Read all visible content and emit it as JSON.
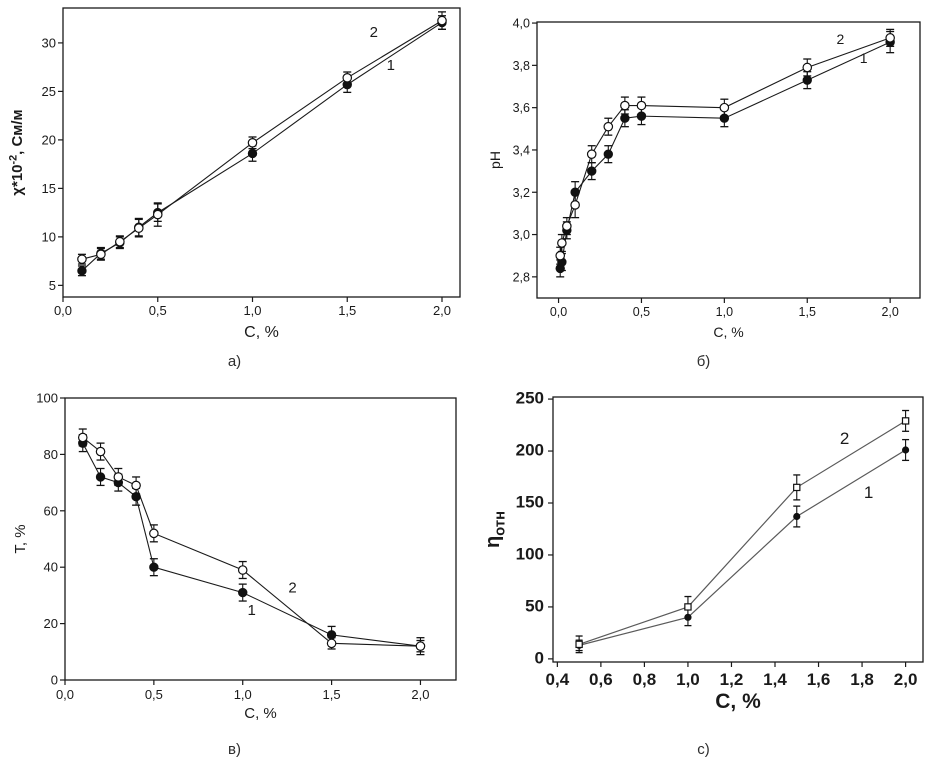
{
  "figure": {
    "background": "#ffffff",
    "captions": [
      "а)",
      "б)",
      "в)",
      "c)"
    ]
  },
  "colors": {
    "axis": "#1a1a1a",
    "marker": "#111111",
    "line_top_charts": "#1a1a1a",
    "line_chart_c": "#5a5a5a"
  },
  "chart_data": [
    {
      "id": "a",
      "type": "line",
      "caption": "а)",
      "xlabel": "C, %",
      "ylabel_text": "χ*10⁻², См/м",
      "ylabel_parts": [
        {
          "t": "χ*10"
        },
        {
          "t": "-2",
          "sup": true
        },
        {
          "t": ", См/м"
        }
      ],
      "xlim": [
        0,
        2.095
      ],
      "ylim": [
        3.8,
        33.6
      ],
      "xticks": {
        "values": [
          0,
          0.5,
          1.0,
          1.5,
          2.0
        ],
        "labels": [
          "0,0",
          "0,5",
          "1,0",
          "1,5",
          "2,0"
        ]
      },
      "yticks": {
        "values": [
          5,
          10,
          15,
          20,
          25,
          30
        ],
        "labels": [
          "5",
          "10",
          "15",
          "20",
          "25",
          "30"
        ]
      },
      "legend_position": "none",
      "grid": false,
      "series": [
        {
          "name": "1",
          "marker": "filled-circle",
          "x": [
            0.1,
            0.2,
            0.3,
            0.4,
            0.5,
            1.0,
            1.5,
            2.0
          ],
          "y": [
            6.5,
            8.3,
            9.4,
            11.0,
            12.5,
            18.6,
            25.7,
            32.1
          ],
          "err": [
            0.5,
            0.6,
            0.6,
            0.9,
            0.9,
            0.8,
            0.8,
            0.7
          ]
        },
        {
          "name": "2",
          "marker": "open-circle",
          "x": [
            0.1,
            0.2,
            0.3,
            0.4,
            0.5,
            1.0,
            1.5,
            2.0
          ],
          "y": [
            7.7,
            8.2,
            9.5,
            10.9,
            12.3,
            19.7,
            26.4,
            32.3
          ],
          "err": [
            0.5,
            0.6,
            0.6,
            0.9,
            1.2,
            0.6,
            0.6,
            0.9
          ]
        }
      ],
      "annotations": [
        {
          "text": "2",
          "x": 1.64,
          "y": 30.6
        },
        {
          "text": "1",
          "x": 1.73,
          "y": 27.2
        }
      ]
    },
    {
      "id": "b",
      "type": "line",
      "caption": "б)",
      "xlabel": "C, %",
      "ylabel_text": "pH",
      "ylabel_parts": [
        {
          "t": "pH"
        }
      ],
      "xlim": [
        -0.13,
        2.18
      ],
      "ylim": [
        2.7,
        4.005
      ],
      "xticks": {
        "values": [
          0,
          0.5,
          1.0,
          1.5,
          2.0
        ],
        "labels": [
          "0,0",
          "0,5",
          "1,0",
          "1,5",
          "2,0"
        ]
      },
      "yticks": {
        "values": [
          2.8,
          3.0,
          3.2,
          3.4,
          3.6,
          3.8,
          4.0
        ],
        "labels": [
          "2,8",
          "3,0",
          "3,2",
          "3,4",
          "3,6",
          "3,8",
          "4,0"
        ]
      },
      "legend_position": "none",
      "grid": false,
      "series": [
        {
          "name": "1",
          "marker": "filled-circle",
          "x": [
            0.01,
            0.02,
            0.05,
            0.1,
            0.2,
            0.3,
            0.4,
            0.5,
            1.0,
            1.5,
            2.0
          ],
          "y": [
            2.84,
            2.87,
            3.02,
            3.2,
            3.3,
            3.38,
            3.55,
            3.56,
            3.55,
            3.73,
            3.91
          ],
          "err": [
            0.04,
            0.04,
            0.04,
            0.05,
            0.04,
            0.04,
            0.04,
            0.04,
            0.04,
            0.04,
            0.05
          ]
        },
        {
          "name": "2",
          "marker": "open-circle",
          "x": [
            0.01,
            0.02,
            0.05,
            0.1,
            0.2,
            0.3,
            0.4,
            0.5,
            1.0,
            1.5,
            2.0
          ],
          "y": [
            2.9,
            2.96,
            3.04,
            3.14,
            3.38,
            3.51,
            3.61,
            3.61,
            3.6,
            3.79,
            3.93
          ],
          "err": [
            0.04,
            0.04,
            0.04,
            0.06,
            0.04,
            0.04,
            0.04,
            0.04,
            0.04,
            0.04,
            0.04
          ]
        }
      ],
      "annotations": [
        {
          "text": "2",
          "x": 1.7,
          "y": 3.9
        },
        {
          "text": "1",
          "x": 1.84,
          "y": 3.81
        }
      ]
    },
    {
      "id": "v",
      "type": "line",
      "caption": "в)",
      "xlabel": "C, %",
      "ylabel_text": "T, %",
      "ylabel_parts": [
        {
          "t": "T, %"
        }
      ],
      "xlim": [
        0,
        2.2
      ],
      "ylim": [
        0,
        100
      ],
      "xticks": {
        "values": [
          0,
          0.5,
          1.0,
          1.5,
          2.0
        ],
        "labels": [
          "0,0",
          "0,5",
          "1,0",
          "1,5",
          "2,0"
        ]
      },
      "yticks": {
        "values": [
          0,
          20,
          40,
          60,
          80,
          100
        ],
        "labels": [
          "0",
          "20",
          "40",
          "60",
          "80",
          "100"
        ]
      },
      "legend_position": "none",
      "grid": false,
      "series": [
        {
          "name": "1",
          "marker": "filled-circle",
          "x": [
            0.1,
            0.2,
            0.3,
            0.4,
            0.5,
            1.0,
            1.5,
            2.0
          ],
          "y": [
            84,
            72,
            70,
            65,
            40,
            31,
            16,
            12
          ],
          "err": [
            3,
            3,
            3,
            3,
            3,
            3,
            3,
            2
          ]
        },
        {
          "name": "2",
          "marker": "open-circle",
          "x": [
            0.1,
            0.2,
            0.3,
            0.4,
            0.5,
            1.0,
            1.5,
            2.0
          ],
          "y": [
            86,
            81,
            72,
            69,
            52,
            39,
            13,
            12
          ],
          "err": [
            3,
            3,
            3,
            3,
            3,
            3,
            2,
            3
          ]
        }
      ],
      "annotations": [
        {
          "text": "2",
          "x": 1.28,
          "y": 31
        },
        {
          "text": "1",
          "x": 1.05,
          "y": 23
        }
      ]
    },
    {
      "id": "c",
      "type": "line",
      "caption": "c)",
      "xlabel": "C, %",
      "ylabel_text": "ηотн",
      "ylabel_parts": [
        {
          "t": "η"
        },
        {
          "t": "отн",
          "sub": true
        }
      ],
      "xlim": [
        0.38,
        2.08
      ],
      "ylim": [
        -3,
        252
      ],
      "xticks": {
        "values": [
          0.4,
          0.6,
          0.8,
          1.0,
          1.2,
          1.4,
          1.6,
          1.8,
          2.0
        ],
        "labels": [
          "0,4",
          "0,6",
          "0,8",
          "1,0",
          "1,2",
          "1,4",
          "1,6",
          "1,8",
          "2,0"
        ]
      },
      "yticks": {
        "values": [
          0,
          50,
          100,
          150,
          200,
          250
        ],
        "labels": [
          "0",
          "50",
          "100",
          "150",
          "200",
          "250"
        ]
      },
      "legend_position": "none",
      "grid": false,
      "series": [
        {
          "name": "1",
          "marker": "filled-circle",
          "x": [
            0.5,
            1.0,
            1.5,
            2.0
          ],
          "y": [
            13,
            40,
            137,
            201
          ],
          "err": [
            5,
            8,
            10,
            10
          ]
        },
        {
          "name": "2",
          "marker": "open-square",
          "x": [
            0.5,
            1.0,
            1.5,
            2.0
          ],
          "y": [
            14,
            50,
            165,
            229
          ],
          "err": [
            8,
            10,
            12,
            10
          ]
        }
      ],
      "annotations": [
        {
          "text": "2",
          "x": 1.72,
          "y": 207
        },
        {
          "text": "1",
          "x": 1.83,
          "y": 155
        }
      ]
    }
  ]
}
